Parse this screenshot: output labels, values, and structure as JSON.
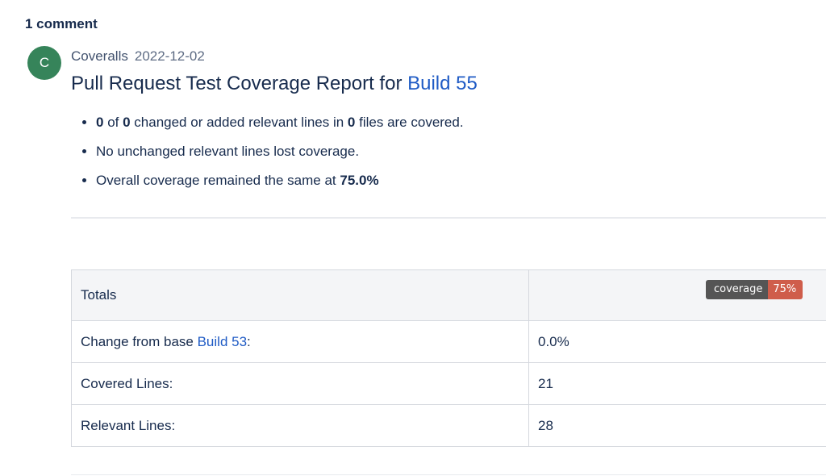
{
  "comments": {
    "count_label": "1 comment"
  },
  "comment": {
    "avatar_initial": "C",
    "author": "Coveralls",
    "date": "2022-12-02",
    "title_prefix": "Pull Request Test Coverage Report for",
    "title_link": "Build 55",
    "bullets": [
      {
        "parts": [
          "0",
          " of ",
          "0",
          " changed or added relevant lines in ",
          "0",
          " files are covered."
        ]
      },
      {
        "text": "No unchanged relevant lines lost coverage."
      },
      {
        "prefix": "Overall coverage remained the same at ",
        "value": "75.0%"
      }
    ],
    "colors": {
      "avatar": "#36845a",
      "link": "#1f5bc5",
      "badge_label": "#555555",
      "badge_value": "#cf5d4b"
    }
  },
  "totals": {
    "header": "Totals",
    "badge": {
      "label": "coverage",
      "value": "75%"
    },
    "rows": [
      {
        "label_prefix": "Change from base ",
        "label_link": "Build 53",
        "label_suffix": ":",
        "value": "0.0%"
      },
      {
        "label": "Covered Lines:",
        "value": "21"
      },
      {
        "label": "Relevant Lines:",
        "value": "28"
      }
    ]
  }
}
